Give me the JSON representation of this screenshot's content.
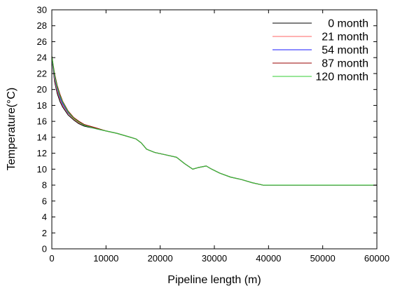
{
  "chart_data": {
    "type": "line",
    "title": "",
    "xlabel": "Pipeline length (m)",
    "ylabel": "Temperature(°C)",
    "xlim": [
      0,
      60000
    ],
    "ylim": [
      0,
      30
    ],
    "x_ticks": [
      0,
      10000,
      20000,
      30000,
      40000,
      50000,
      60000
    ],
    "x_tick_labels": [
      "0",
      "10000",
      "20000",
      "30000",
      "40000",
      "50000",
      "60000"
    ],
    "y_ticks": [
      0,
      2,
      4,
      6,
      8,
      10,
      12,
      14,
      16,
      18,
      20,
      22,
      24,
      26,
      28,
      30
    ],
    "y_tick_labels": [
      "0",
      "2",
      "4",
      "6",
      "8",
      "10",
      "12",
      "14",
      "16",
      "18",
      "20",
      "22",
      "24",
      "26",
      "28",
      "30"
    ],
    "grid": false,
    "legend_position": "top-right",
    "series": [
      {
        "name": "0 month",
        "color": "#000000",
        "x": [
          0,
          500,
          1000,
          1500,
          2000,
          3000,
          4000,
          5000,
          6000,
          8000,
          10000,
          12000,
          14000,
          15500,
          16500,
          17500,
          19000,
          21000,
          23000,
          24500,
          26000,
          27000,
          28500,
          29500,
          31000,
          33000,
          35000,
          37000,
          39000,
          45000,
          50000,
          55000,
          60000
        ],
        "y": [
          24.0,
          21.0,
          19.5,
          18.5,
          17.8,
          16.8,
          16.2,
          15.7,
          15.4,
          15.1,
          14.8,
          14.5,
          14.1,
          13.8,
          13.3,
          12.5,
          12.1,
          11.8,
          11.5,
          10.7,
          10.0,
          10.2,
          10.4,
          10.0,
          9.5,
          9.0,
          8.7,
          8.3,
          8.0,
          8.0,
          8.0,
          8.0,
          8.0
        ]
      },
      {
        "name": "21 month",
        "color": "#ff6666",
        "x": [
          0,
          500,
          1000,
          1500,
          2000,
          3000,
          4000,
          5000,
          6000,
          8000,
          10000,
          12000,
          14000,
          15500,
          16500,
          17500,
          19000,
          21000,
          23000,
          24500,
          26000,
          27000,
          28500,
          29500,
          31000,
          33000,
          35000,
          37000,
          39000,
          45000,
          50000,
          55000,
          60000
        ],
        "y": [
          24.1,
          21.3,
          19.8,
          18.8,
          18.0,
          17.0,
          16.3,
          15.8,
          15.5,
          15.1,
          14.8,
          14.5,
          14.1,
          13.8,
          13.3,
          12.5,
          12.1,
          11.8,
          11.5,
          10.7,
          10.0,
          10.2,
          10.4,
          10.0,
          9.5,
          9.0,
          8.7,
          8.3,
          8.0,
          8.0,
          8.0,
          8.0,
          8.0
        ]
      },
      {
        "name": "54 month",
        "color": "#1a1aff",
        "x": [
          0,
          500,
          1000,
          1500,
          2000,
          3000,
          4000,
          5000,
          6000,
          8000,
          10000,
          12000,
          14000,
          15500,
          16500,
          17500,
          19000,
          21000,
          23000,
          24500,
          26000,
          27000,
          28500,
          29500,
          31000,
          33000,
          35000,
          37000,
          39000,
          45000,
          50000,
          55000,
          60000
        ],
        "y": [
          24.1,
          21.6,
          20.1,
          19.0,
          18.2,
          17.1,
          16.4,
          15.9,
          15.5,
          15.1,
          14.8,
          14.5,
          14.1,
          13.8,
          13.3,
          12.5,
          12.1,
          11.8,
          11.5,
          10.7,
          10.0,
          10.2,
          10.4,
          10.0,
          9.5,
          9.0,
          8.7,
          8.3,
          8.0,
          8.0,
          8.0,
          8.0,
          8.0
        ]
      },
      {
        "name": "87 month",
        "color": "#990000",
        "x": [
          0,
          500,
          1000,
          1500,
          2000,
          3000,
          4000,
          5000,
          6000,
          8000,
          10000,
          12000,
          14000,
          15500,
          16500,
          17500,
          19000,
          21000,
          23000,
          24500,
          26000,
          27000,
          28500,
          29500,
          31000,
          33000,
          35000,
          37000,
          39000,
          45000,
          50000,
          55000,
          60000
        ],
        "y": [
          24.2,
          22.0,
          20.5,
          19.4,
          18.5,
          17.3,
          16.5,
          16.0,
          15.6,
          15.2,
          14.8,
          14.5,
          14.1,
          13.8,
          13.3,
          12.5,
          12.1,
          11.8,
          11.5,
          10.7,
          10.0,
          10.2,
          10.4,
          10.0,
          9.5,
          9.0,
          8.7,
          8.3,
          8.0,
          8.0,
          8.0,
          8.0,
          8.0
        ]
      },
      {
        "name": "120 month",
        "color": "#33cc33",
        "x": [
          0,
          500,
          1000,
          1500,
          2000,
          3000,
          4000,
          5000,
          6000,
          8000,
          10000,
          12000,
          14000,
          15500,
          16500,
          17500,
          19000,
          21000,
          23000,
          24500,
          26000,
          27000,
          28500,
          29500,
          31000,
          33000,
          35000,
          37000,
          39000,
          45000,
          50000,
          55000,
          60000
        ],
        "y": [
          24.2,
          21.8,
          20.3,
          19.2,
          18.4,
          17.2,
          16.4,
          15.9,
          15.5,
          15.1,
          14.8,
          14.5,
          14.1,
          13.8,
          13.3,
          12.5,
          12.1,
          11.8,
          11.5,
          10.7,
          10.0,
          10.2,
          10.4,
          10.0,
          9.5,
          9.0,
          8.7,
          8.3,
          8.0,
          8.0,
          8.0,
          8.0,
          8.0
        ]
      }
    ]
  }
}
